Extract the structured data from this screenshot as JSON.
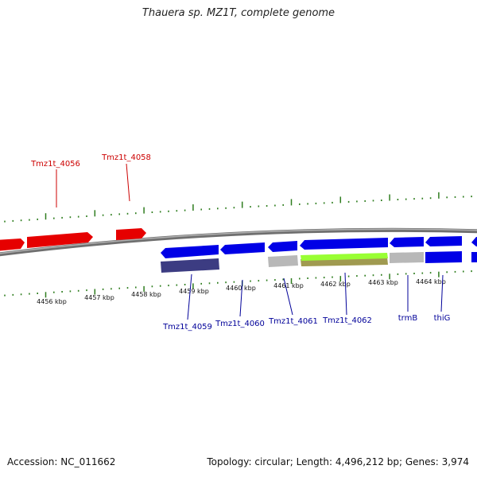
{
  "title": "Thauera sp. MZ1T, complete genome",
  "footer": {
    "accession": "Accession: NC_011662",
    "summary": "Topology: circular; Length: 4,496,212 bp; Genes: 3,974"
  },
  "colors": {
    "forward_gene": "#e60000",
    "reverse_gene": "#0000e6",
    "forward_label": "#cc0000",
    "reverse_label": "#000099",
    "backbone": "#8a8a8a",
    "tick": "#2e7d1e",
    "rna_gray": "#b8b8b8",
    "product_purple": "#3c3c82",
    "product_olive": "#a09a50",
    "product_lime": "#99ff33"
  },
  "scale_labels": [
    "4456 kbp",
    "4457 kbp",
    "4458 kbp",
    "4459 kbp",
    "4460 kbp",
    "4461 kbp",
    "4462 kbp",
    "4463 kbp",
    "4464 kbp"
  ],
  "forward_labels": [
    "Tmz1t_4056",
    "Tmz1t_4058"
  ],
  "reverse_labels": [
    "Tmz1t_4059",
    "Tmz1t_4060",
    "Tmz1t_4061",
    "Tmz1t_4062",
    "trmB",
    "thiG"
  ]
}
